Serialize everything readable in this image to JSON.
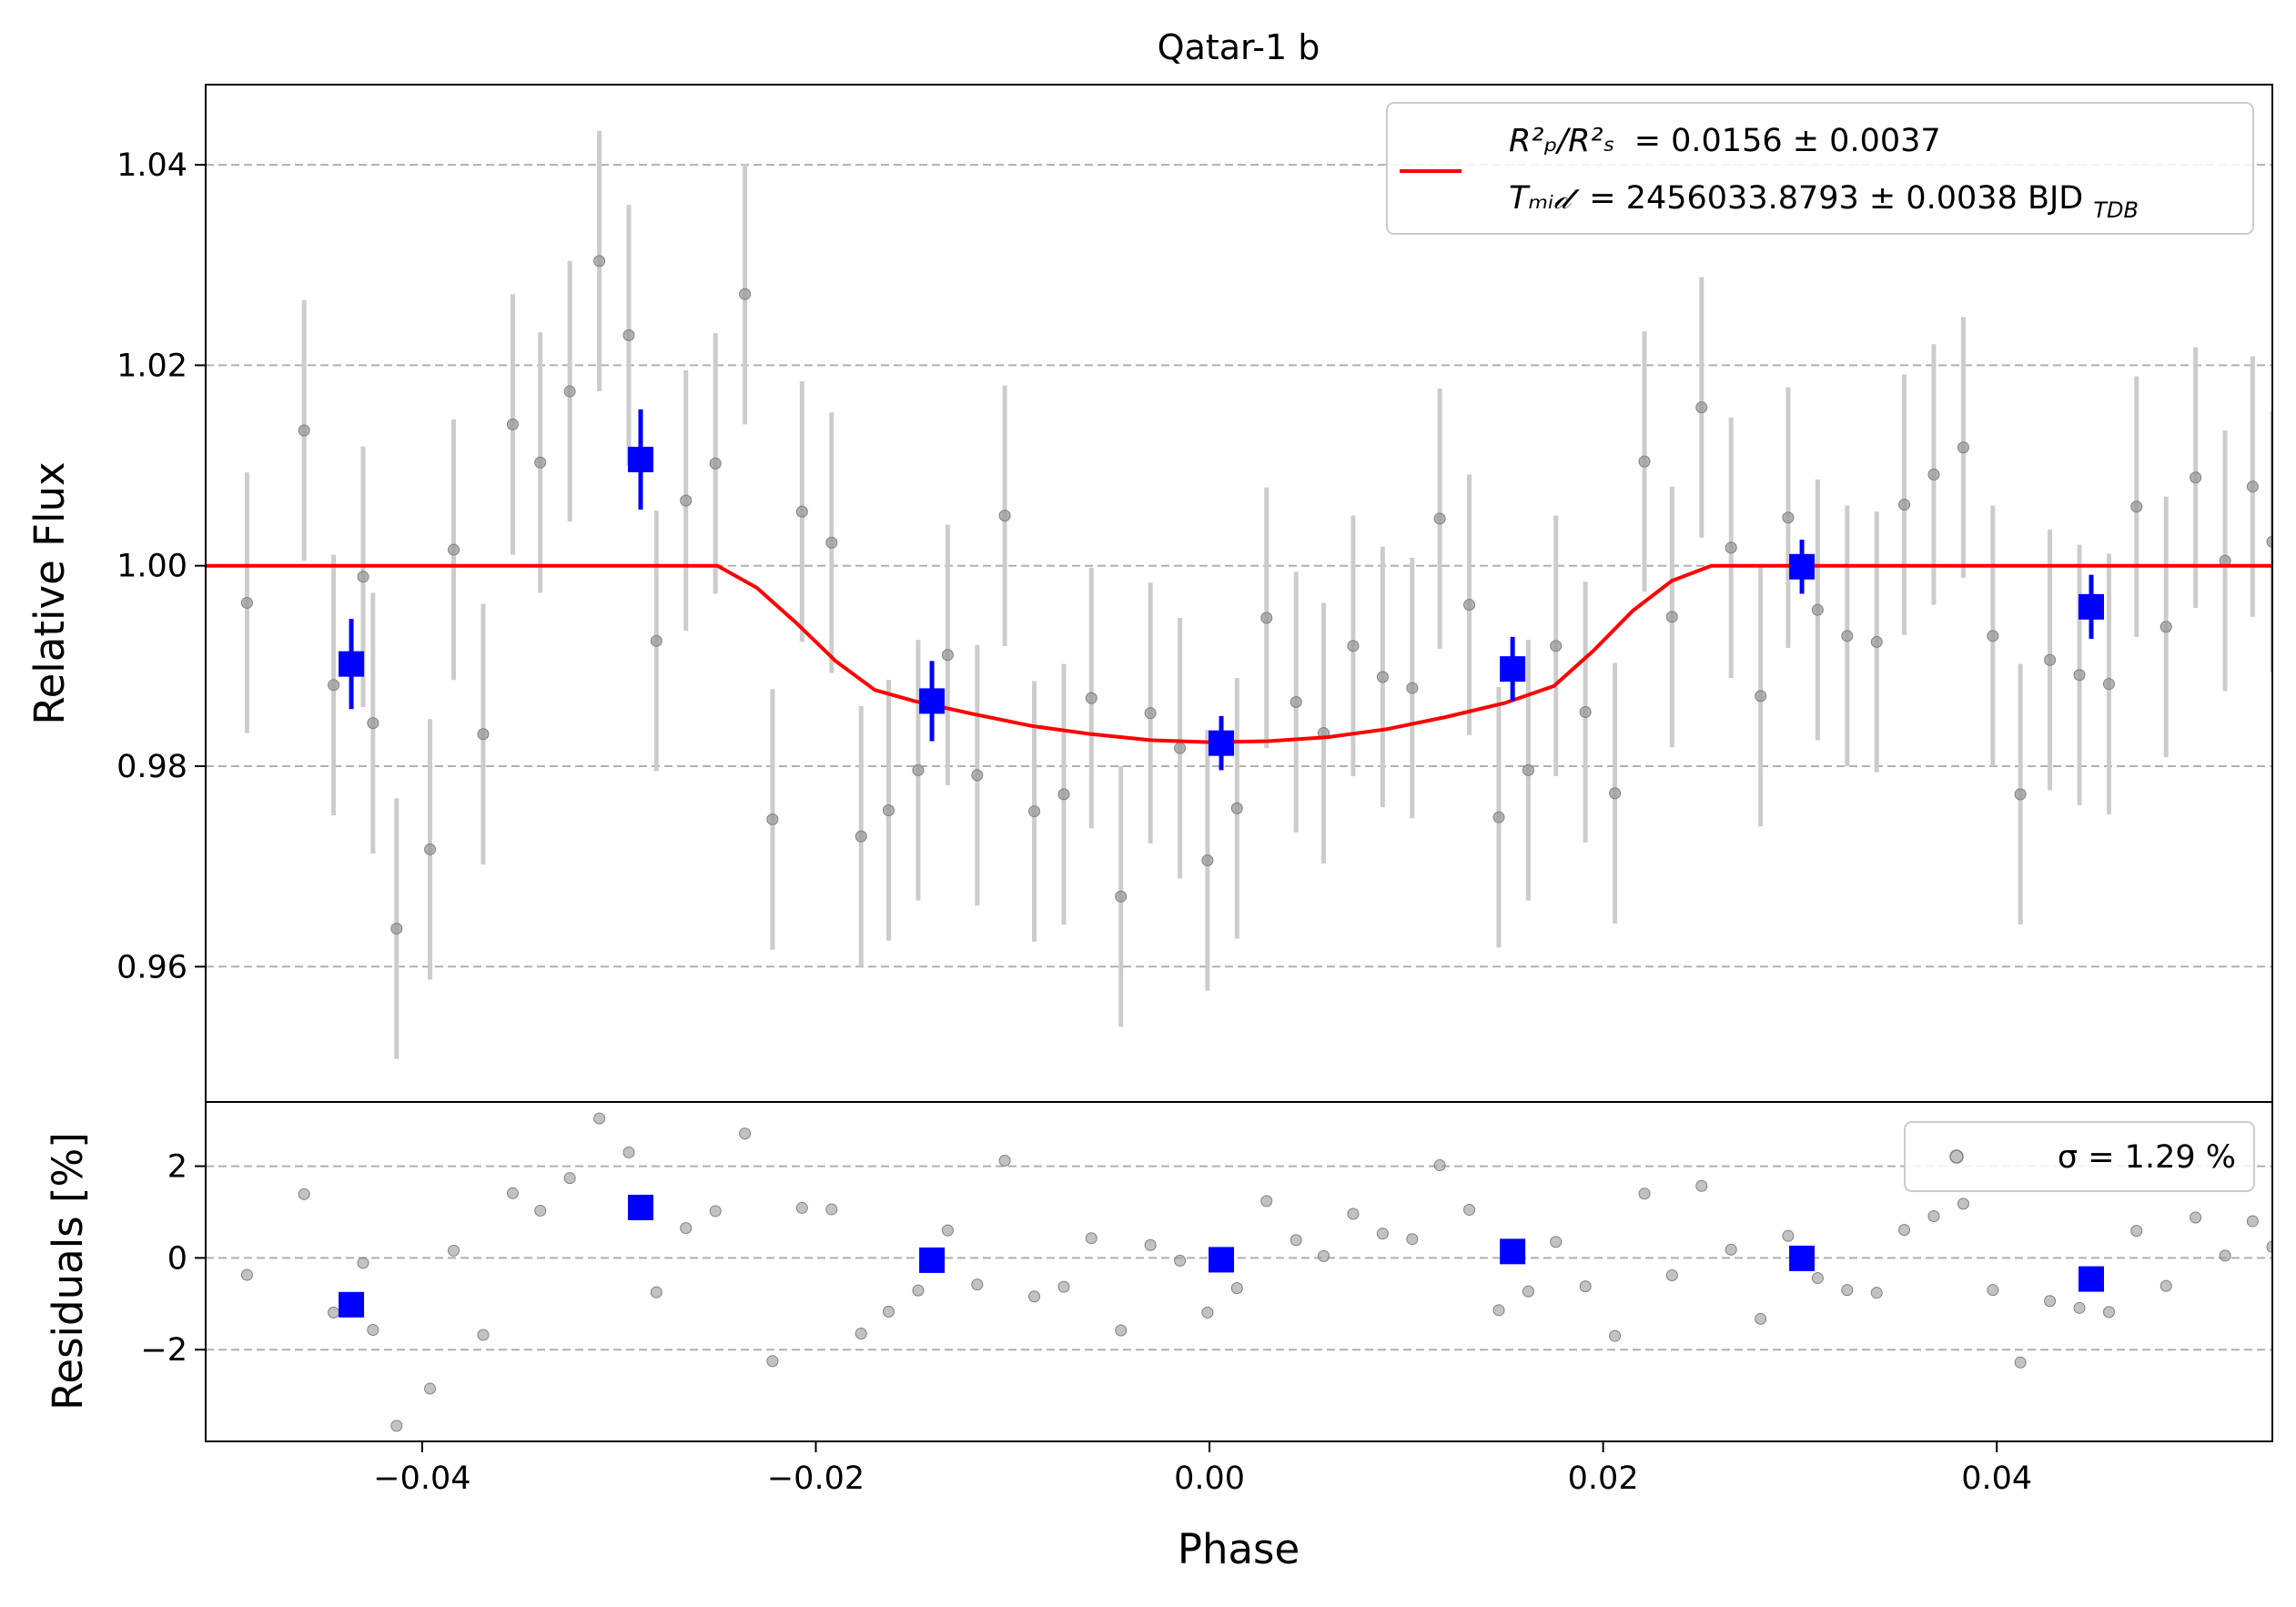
{
  "chart_data": [
    {
      "type": "scatter",
      "title": "Qatar-1 b",
      "xlabel": "",
      "ylabel": "Relative Flux",
      "xlim": [
        -0.051,
        0.054
      ],
      "ylim": [
        0.9465,
        1.048
      ],
      "xticks": [
        -0.04,
        -0.02,
        0.0,
        0.02,
        0.04
      ],
      "yticks": [
        0.96,
        0.98,
        1.0,
        1.02,
        1.04
      ],
      "xtick_labels": [
        "−0.04",
        "−0.02",
        "0.00",
        "0.02",
        "0.04"
      ],
      "ytick_labels": [
        "0.96",
        "0.98",
        "1.00",
        "1.02",
        "1.04"
      ],
      "grid": "horizontal-dashed",
      "legend_position": "top-right",
      "colors": {
        "raw": "#808080",
        "errorbar": "#cccccc",
        "binned": "#0000ff",
        "model": "#ff0000"
      },
      "legend": {
        "line1_lhs": "R²ₚ/R²ₛ",
        "line1_value": "= 0.0156 ± 0.0037",
        "line2_lhs": "Tₘᵢ𝒹",
        "line2_value": "= 2456033.8793 ± 0.0038 BJD",
        "line2_sub": "TDB"
      },
      "raw_points": {
        "x": [
          -0.0489,
          -0.046,
          -0.0445,
          -0.043,
          -0.0425,
          -0.0413,
          -0.0396,
          -0.0384,
          -0.0369,
          -0.0354,
          -0.034,
          -0.0325,
          -0.031,
          -0.0295,
          -0.0281,
          -0.0266,
          -0.0251,
          -0.0236,
          -0.0222,
          -0.0207,
          -0.0192,
          -0.0177,
          -0.0163,
          -0.0148,
          -0.0133,
          -0.0118,
          -0.0104,
          -0.0089,
          -0.0074,
          -0.006,
          -0.0045,
          -0.003,
          -0.0015,
          -0.0001,
          0.0014,
          0.0029,
          0.0044,
          0.0058,
          0.0073,
          0.0088,
          0.0103,
          0.0117,
          0.0132,
          0.0147,
          0.0162,
          0.0176,
          0.0191,
          0.0206,
          0.0221,
          0.0235,
          0.025,
          0.0265,
          0.028,
          0.0294,
          0.0309,
          0.0324,
          0.0339,
          0.0353,
          0.0368,
          0.0383,
          0.0398,
          0.0412,
          0.0427,
          0.0442,
          0.0457,
          0.0471,
          0.0486,
          0.0501,
          0.0516,
          0.053,
          0.054
        ],
        "y": [
          0.9963,
          1.0135,
          0.9881,
          0.9989,
          0.9843,
          0.9638,
          0.9717,
          1.0016,
          0.9832,
          1.0141,
          1.0103,
          1.0174,
          1.0304,
          1.023,
          0.9925,
          1.0065,
          1.0102,
          1.0271,
          0.9747,
          1.0054,
          1.0023,
          0.973,
          0.9756,
          0.9796,
          0.9911,
          0.9791,
          1.005,
          0.9755,
          0.9772,
          0.9868,
          0.967,
          0.9853,
          0.9818,
          0.9706,
          0.9758,
          0.9948,
          0.9864,
          0.9833,
          0.992,
          0.9889,
          0.9878,
          1.0047,
          0.9961,
          0.9749,
          0.9796,
          0.992,
          0.9854,
          0.9773,
          1.0104,
          0.9949,
          1.0158,
          1.0018,
          0.987,
          1.0048,
          0.9956,
          0.993,
          0.9924,
          1.0061,
          1.0091,
          1.0118,
          0.993,
          0.9772,
          0.9906,
          0.9891,
          0.9882,
          1.0059,
          0.9939,
          1.0088,
          1.0005,
          1.0079,
          1.0024
        ],
        "yerr": 0.013
      },
      "binned_points": {
        "x": [
          -0.0436,
          -0.0289,
          -0.0141,
          0.0006,
          0.0154,
          0.0301,
          0.0448
        ],
        "y": [
          0.9902,
          1.0106,
          0.9865,
          0.9823,
          0.9897,
          0.9999,
          0.9959
        ],
        "yerr": [
          0.0045,
          0.005,
          0.004,
          0.0027,
          0.0032,
          0.0027,
          0.0032
        ]
      },
      "model": {
        "x": [
          -0.051,
          -0.025,
          -0.023,
          -0.021,
          -0.019,
          -0.017,
          -0.015,
          -0.012,
          -0.009,
          -0.006,
          -0.003,
          0.0,
          0.003,
          0.006,
          0.009,
          0.012,
          0.015,
          0.0175,
          0.0195,
          0.0215,
          0.0235,
          0.0255,
          0.054
        ],
        "y": [
          1.0,
          1.0,
          0.9978,
          0.9943,
          0.9905,
          0.9876,
          0.9865,
          0.9852,
          0.984,
          0.9832,
          0.9826,
          0.9824,
          0.9825,
          0.9829,
          0.9837,
          0.9849,
          0.9863,
          0.988,
          0.9915,
          0.9955,
          0.9985,
          1.0,
          1.0
        ]
      }
    },
    {
      "type": "scatter",
      "xlabel": "Phase",
      "ylabel": "Residuals [%]",
      "xlim": [
        -0.051,
        0.054
      ],
      "ylim": [
        -4.0,
        3.4
      ],
      "xticks": [
        -0.04,
        -0.02,
        0.0,
        0.02,
        0.04
      ],
      "yticks": [
        -2,
        0,
        2
      ],
      "xtick_labels": [
        "−0.04",
        "−0.02",
        "0.00",
        "0.02",
        "0.04"
      ],
      "ytick_labels": [
        "−2",
        "0",
        "2"
      ],
      "grid": "horizontal-dashed",
      "legend_position": "top-right",
      "legend": {
        "label": "σ = 1.29 %"
      },
      "raw_points": {
        "y": [
          -0.37,
          1.39,
          -1.19,
          -0.11,
          -1.57,
          -3.66,
          -2.85,
          0.16,
          -1.68,
          1.41,
          1.03,
          1.74,
          3.04,
          2.3,
          -0.75,
          0.65,
          1.02,
          2.71,
          -2.25,
          1.09,
          1.06,
          -1.65,
          -1.17,
          -0.71,
          0.6,
          -0.58,
          2.12,
          -0.84,
          -0.63,
          0.43,
          -1.58,
          0.28,
          -0.06,
          -1.19,
          -0.66,
          1.24,
          0.39,
          0.04,
          0.96,
          0.53,
          0.41,
          2.02,
          1.05,
          -1.14,
          -0.73,
          0.35,
          -0.62,
          -1.7,
          1.4,
          -0.38,
          1.57,
          0.18,
          -1.33,
          0.48,
          -0.44,
          -0.7,
          -0.76,
          0.61,
          0.91,
          1.18,
          -0.7,
          -2.28,
          -0.94,
          -1.09,
          -1.18,
          0.59,
          -0.61,
          0.88,
          0.05,
          0.8,
          0.24
        ]
      },
      "binned_points": {
        "y": [
          -1.02,
          1.1,
          -0.05,
          -0.04,
          0.14,
          -0.01,
          -0.46
        ]
      }
    }
  ]
}
